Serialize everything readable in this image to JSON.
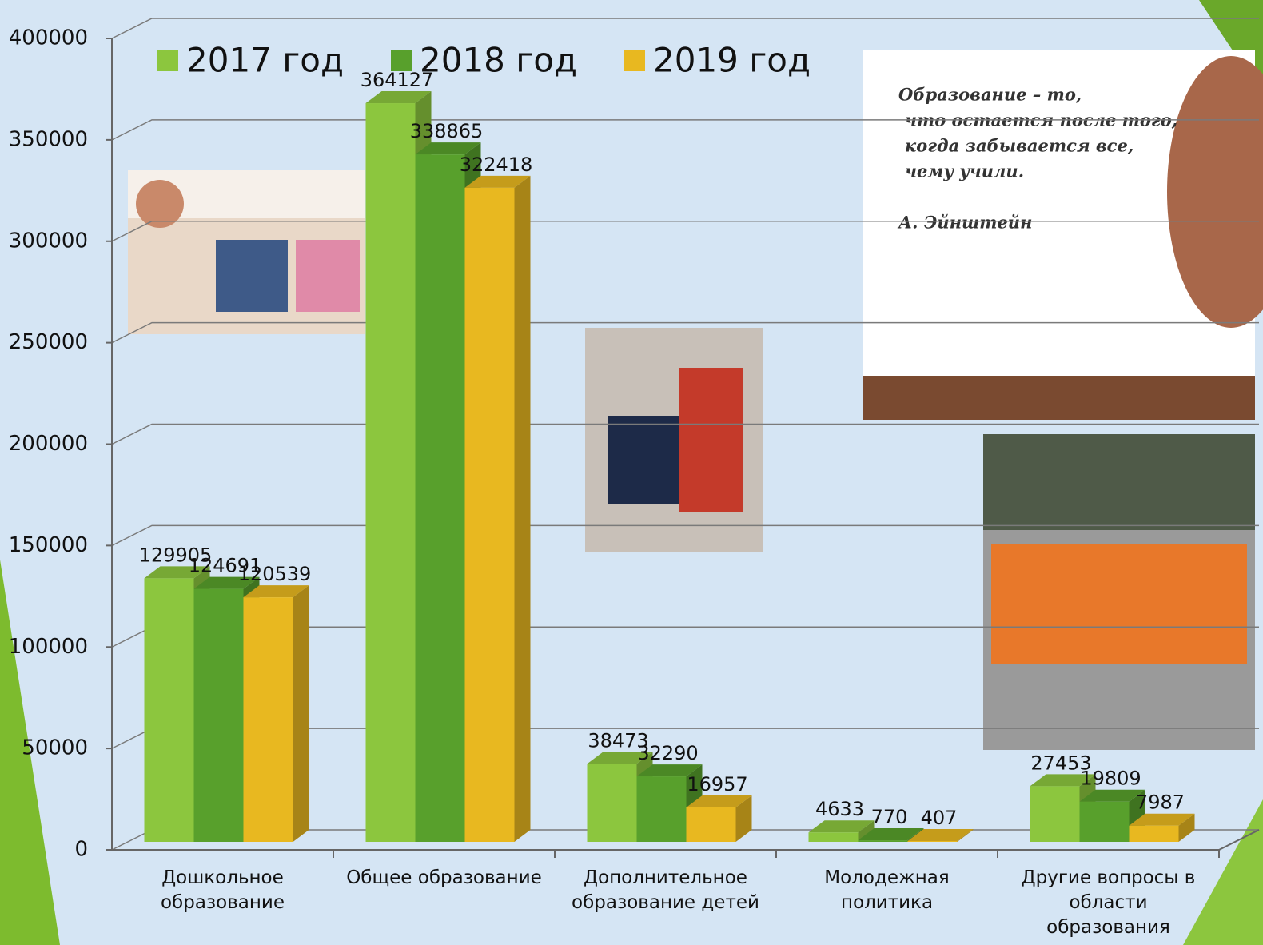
{
  "chart_data": {
    "type": "bar3d",
    "categories": [
      "Дошкольное образование",
      "Общее образование",
      "Дополнительное образование детей",
      "Молодежная политика",
      "Другие вопросы в области образования"
    ],
    "series": [
      {
        "name": "2017 год",
        "color": "#8cc63e",
        "values": [
          129905,
          364127,
          38473,
          4633,
          27453
        ]
      },
      {
        "name": "2018 год",
        "color": "#58a02c",
        "values": [
          124691,
          338865,
          32290,
          770,
          19809
        ]
      },
      {
        "name": "2019 год",
        "color": "#e8b820",
        "values": [
          120539,
          322418,
          16957,
          407,
          7987
        ]
      }
    ],
    "ylim": [
      0,
      400000
    ],
    "yticks": [
      0,
      50000,
      100000,
      150000,
      200000,
      250000,
      300000,
      350000,
      400000
    ],
    "grid": true,
    "legend": "top"
  },
  "quote": {
    "lines": [
      "Образование – то,",
      "что остается после того,",
      "когда забывается все,",
      "чему учили."
    ],
    "author": "А. Эйнштейн"
  }
}
